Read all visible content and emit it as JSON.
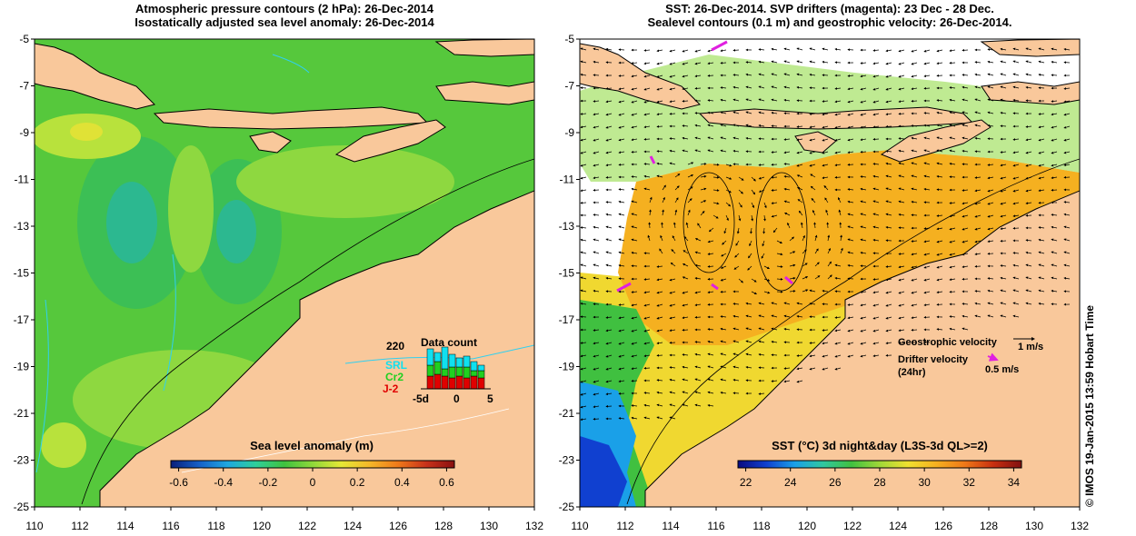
{
  "left_panel": {
    "title_line1": "Atmospheric pressure contours (2 hPa): 26-Dec-2014",
    "title_line2": "Isostatically adjusted sea level anomaly: 26-Dec-2014",
    "colorbar": {
      "title": "Sea level anomaly (m)",
      "ticks": [
        "-0.6",
        "-0.4",
        "-0.2",
        "0",
        "0.2",
        "0.4",
        "0.6"
      ],
      "palette": [
        "#0a1f7a",
        "#1560c8",
        "#1fa8e0",
        "#2fcf9a",
        "#3fc23f",
        "#8fd83a",
        "#e5e836",
        "#f5b82a",
        "#ef7a1a",
        "#c8321a",
        "#8a1010"
      ]
    },
    "data_count": {
      "title": "Data count",
      "max_label": "220",
      "satellites": [
        {
          "name": "SRL",
          "color": "#10e0f0"
        },
        {
          "name": "Cr2",
          "color": "#20d020"
        },
        {
          "name": "J-2",
          "color": "#e00000"
        }
      ],
      "x_ticks": [
        "-5d",
        "0",
        "5"
      ]
    }
  },
  "right_panel": {
    "title_line1": "SST: 26-Dec-2014. SVP drifters (magenta): 23 Dec - 28 Dec.",
    "title_line2": "Sealevel contours (0.1 m) and geostrophic velocity: 26-Dec-2014.",
    "colorbar": {
      "title": "SST (°C) 3d night&day (L3S-3d QL>=2)",
      "ticks": [
        "22",
        "24",
        "26",
        "28",
        "30",
        "32",
        "34"
      ],
      "palette": [
        "#0a0a80",
        "#1040d0",
        "#1aa0e8",
        "#30c8a0",
        "#40c040",
        "#a0d838",
        "#f0e030",
        "#f5b020",
        "#ef7818",
        "#c83010",
        "#801010"
      ]
    },
    "legend": {
      "geo_label": "Geostrophic velocity",
      "geo_value": "1 m/s",
      "drifter_label": "Drifter velocity",
      "drifter_sub": "(24hr)",
      "drifter_value": "0.5 m/s"
    }
  },
  "axes": {
    "lat_ticks": [
      "-5",
      "-7",
      "-9",
      "-11",
      "-13",
      "-15",
      "-17",
      "-19",
      "-21",
      "-23",
      "-25"
    ],
    "lon_ticks": [
      "110",
      "112",
      "114",
      "116",
      "118",
      "120",
      "122",
      "124",
      "126",
      "128",
      "130",
      "132"
    ]
  },
  "colors": {
    "land": "#f9c89b",
    "sea_green": "#56c83c",
    "sea_light": "#8ed840",
    "sea_yellow": "#d8e83a",
    "sea_cyan": "#3cc88c",
    "sst_orange": "#f5b020",
    "sst_yellow": "#f0d830",
    "sst_blue": "#1858d8",
    "drifter": "#e020e0"
  },
  "credit": "© IMOS 19-Jan-2015 13:59 Hobart Time"
}
